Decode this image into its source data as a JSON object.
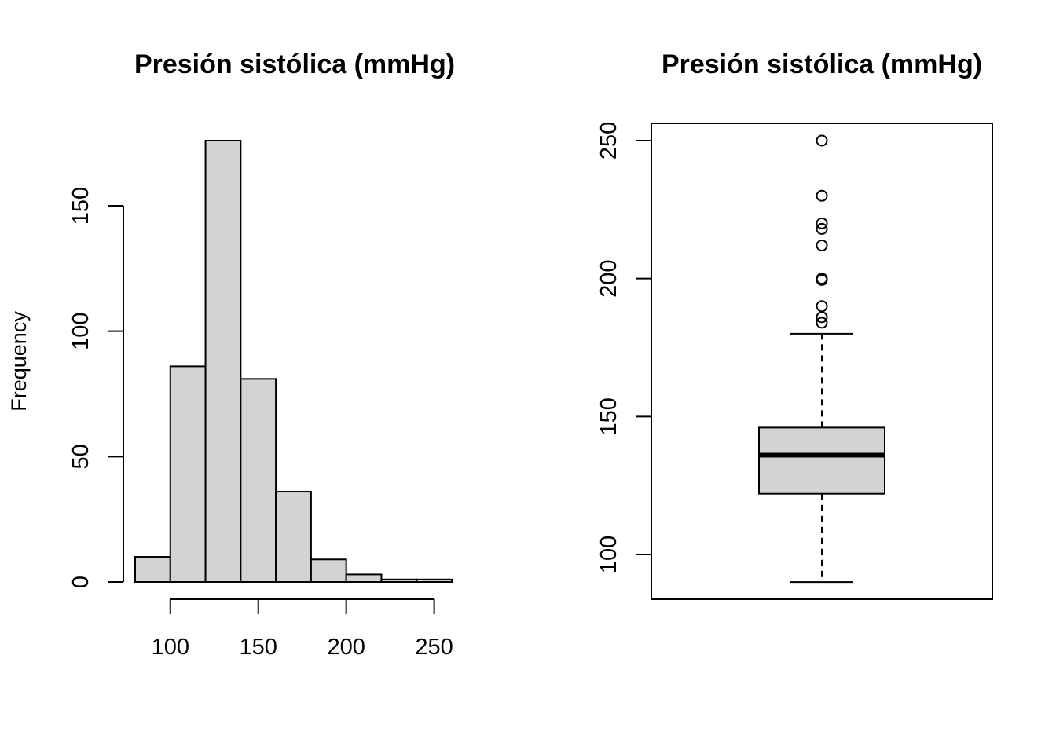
{
  "chart_data": [
    {
      "type": "histogram",
      "title": "Presión sistólica (mmHg)",
      "xlabel": "",
      "ylabel": "Frequency",
      "bins": [
        {
          "from": 80,
          "to": 100,
          "count": 10
        },
        {
          "from": 100,
          "to": 120,
          "count": 86
        },
        {
          "from": 120,
          "to": 140,
          "count": 176
        },
        {
          "from": 140,
          "to": 160,
          "count": 81
        },
        {
          "from": 160,
          "to": 180,
          "count": 36
        },
        {
          "from": 180,
          "to": 200,
          "count": 9
        },
        {
          "from": 200,
          "to": 220,
          "count": 3
        },
        {
          "from": 220,
          "to": 240,
          "count": 1
        },
        {
          "from": 240,
          "to": 260,
          "count": 1
        }
      ],
      "xticks": [
        100,
        150,
        200,
        250
      ],
      "yticks": [
        0,
        50,
        100,
        150
      ],
      "xlim": [
        80,
        260
      ],
      "ylim": [
        0,
        176
      ],
      "bar_color": "#d3d3d3",
      "grid": false
    },
    {
      "type": "boxplot",
      "title": "Presión sistólica (mmHg)",
      "ylabel": "",
      "stats": {
        "min": 90,
        "q1": 122,
        "median": 136,
        "q3": 146,
        "max": 180
      },
      "outliers": [
        184,
        186,
        190,
        199.5,
        200,
        212,
        218,
        220,
        230,
        250
      ],
      "yticks": [
        100,
        150,
        200,
        250
      ],
      "ylim": [
        84,
        256
      ],
      "box_color": "#d3d3d3",
      "grid": false
    }
  ]
}
